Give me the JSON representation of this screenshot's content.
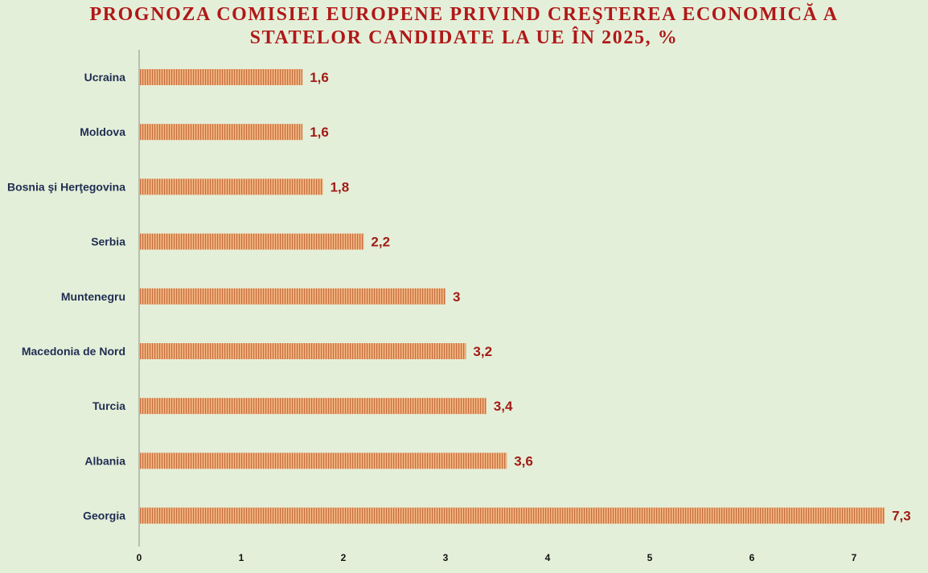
{
  "title_line1": "PROGNOZA COMISIEI EUROPENE PRIVIND CREŞTEREA ECONOMICĂ A",
  "title_line2": "STATELOR CANDIDATE LA UE ÎN 2025, %",
  "colors": {
    "background": "#e4efd9",
    "bar_fill": "#f3b37f",
    "bar_stripe": "#c46f40",
    "category_label": "#1f2d52",
    "value_label": "#a11c16",
    "title": "#b01818",
    "axis": "#a7b1a5"
  },
  "chart_data": {
    "type": "bar",
    "orientation": "horizontal",
    "title": "PROGNOZA COMISIEI EUROPENE PRIVIND CREŞTEREA ECONOMICĂ A STATELOR CANDIDATE LA UE ÎN 2025, %",
    "categories": [
      "Ucraina",
      "Moldova",
      "Bosnia şi Herţegovina",
      "Serbia",
      "Muntenegru",
      "Macedonia de Nord",
      "Turcia",
      "Albania",
      "Georgia"
    ],
    "values": [
      1.6,
      1.6,
      1.8,
      2.2,
      3.0,
      3.2,
      3.4,
      3.6,
      7.3
    ],
    "value_labels": [
      "1,6",
      "1,6",
      "1,8",
      "2,2",
      "3",
      "3,2",
      "3,4",
      "3,6",
      "7,3"
    ],
    "xlim": [
      0,
      7
    ],
    "xticks": [
      "0",
      "1",
      "2",
      "3",
      "4",
      "5",
      "6",
      "7"
    ],
    "xlabel": "",
    "ylabel": "",
    "grid": false,
    "legend": "none",
    "bar_pattern": "vertical-stripes"
  }
}
